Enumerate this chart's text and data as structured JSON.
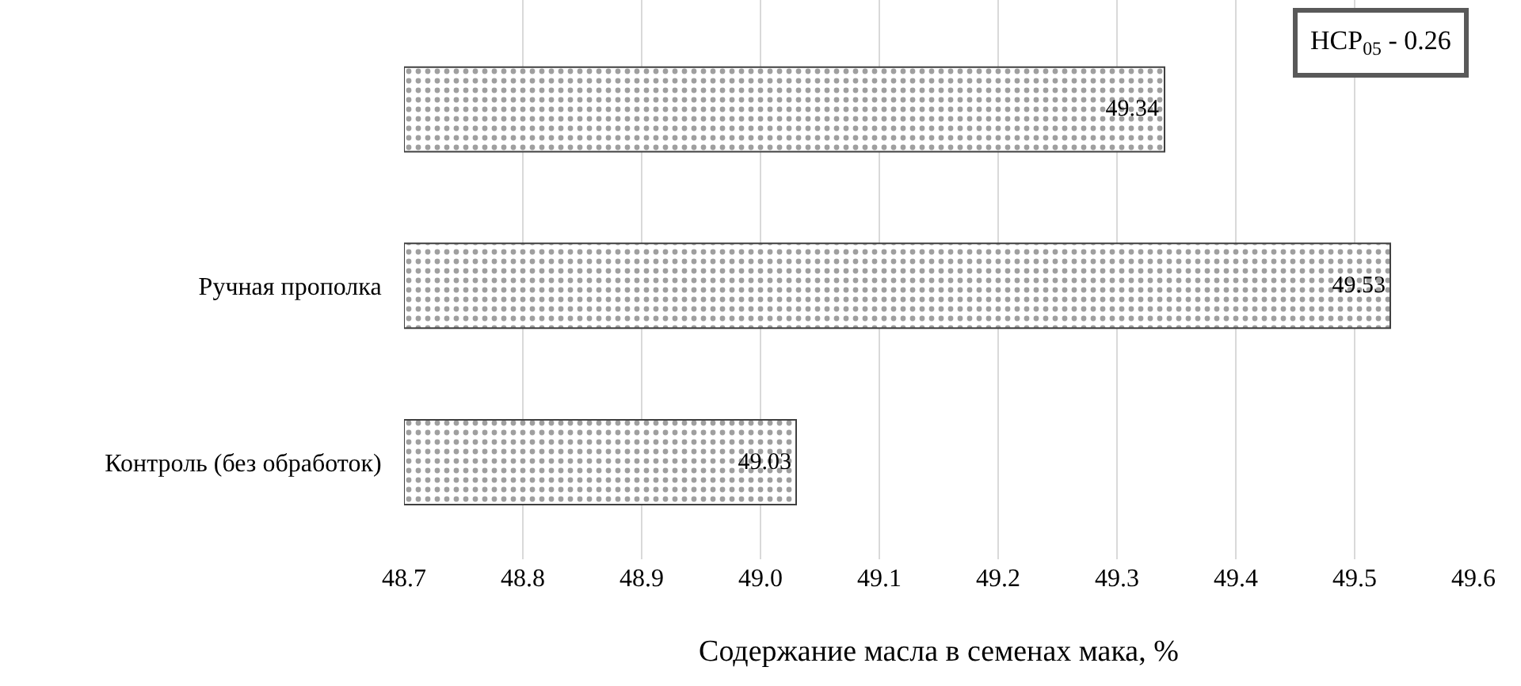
{
  "chart_data": {
    "type": "bar",
    "orientation": "horizontal",
    "categories": [
      null,
      "Ручная прополка",
      "Контроль (без обработок)"
    ],
    "values": [
      49.34,
      49.53,
      49.03
    ],
    "color": "#404040",
    "xlim": [
      48.7,
      49.6
    ],
    "xticks": [
      48.7,
      48.8,
      48.9,
      {
        "value": 49.0,
        "label": "49.0"
      },
      49.1,
      49.2,
      49.3,
      49.4,
      49.5,
      49.6
    ],
    "xlabel": "Содержание масла в семенах мака, %",
    "grid": "x",
    "data_labels": true,
    "annotations": [
      "НСР$_{05}$ - 0.26"
    ]
  }
}
